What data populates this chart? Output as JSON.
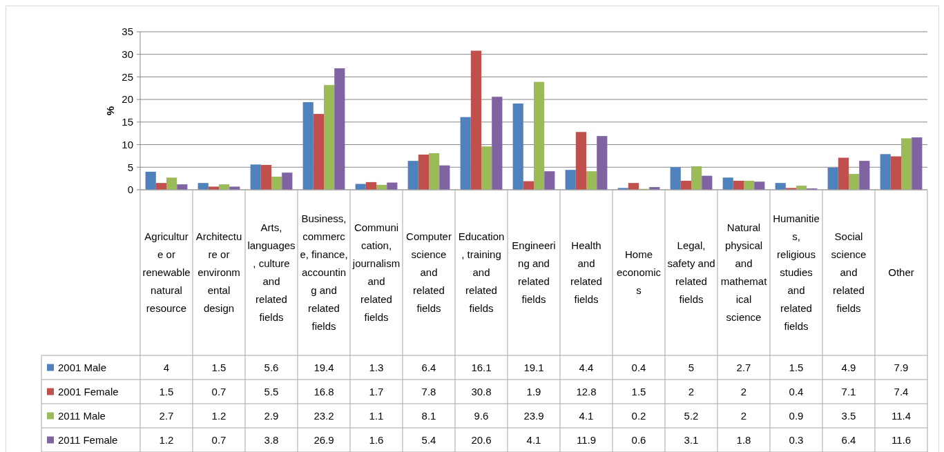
{
  "chart_data": {
    "type": "bar",
    "ylabel": "%",
    "categories": [
      "Agriculture or renewable natural resource",
      "Architecture or environmental design",
      "Arts, languages, culture and related fields",
      "Business, commerce, finance, accounting and related fields",
      "Communication, journalism and related fields",
      "Computer science and related fields",
      "Education, training and related fields",
      "Engineering and related fields",
      "Health and related fields",
      "Home economics",
      "Legal, safety and related fields",
      "Natural physical and mathematical science",
      "Humanities, religious studies and related fields",
      "Social science and related fields",
      "Other"
    ],
    "series": [
      {
        "name": "2001 Male",
        "color": "#4f81bd",
        "values": [
          4,
          1.5,
          5.6,
          19.4,
          1.3,
          6.4,
          16.1,
          19.1,
          4.4,
          0.4,
          5,
          2.7,
          1.5,
          4.9,
          7.9
        ]
      },
      {
        "name": "2001 Female",
        "color": "#c0504d",
        "values": [
          1.5,
          0.7,
          5.5,
          16.8,
          1.7,
          7.8,
          30.8,
          1.9,
          12.8,
          1.5,
          2,
          2,
          0.4,
          7.1,
          7.4
        ]
      },
      {
        "name": "2011 Male",
        "color": "#9bbb59",
        "values": [
          2.7,
          1.2,
          2.9,
          23.2,
          1.1,
          8.1,
          9.6,
          23.9,
          4.1,
          0.2,
          5.2,
          2,
          0.9,
          3.5,
          11.4
        ]
      },
      {
        "name": "2011 Female",
        "color": "#8064a2",
        "values": [
          1.2,
          0.7,
          3.8,
          26.9,
          1.6,
          5.4,
          20.6,
          4.1,
          11.9,
          0.6,
          3.1,
          1.8,
          0.3,
          6.4,
          11.6
        ]
      }
    ],
    "ylim": [
      0,
      35
    ],
    "yticks": [
      0,
      5,
      10,
      15,
      20,
      25,
      30,
      35
    ],
    "grid": "y",
    "legend": "bottom",
    "data_labels": true
  }
}
